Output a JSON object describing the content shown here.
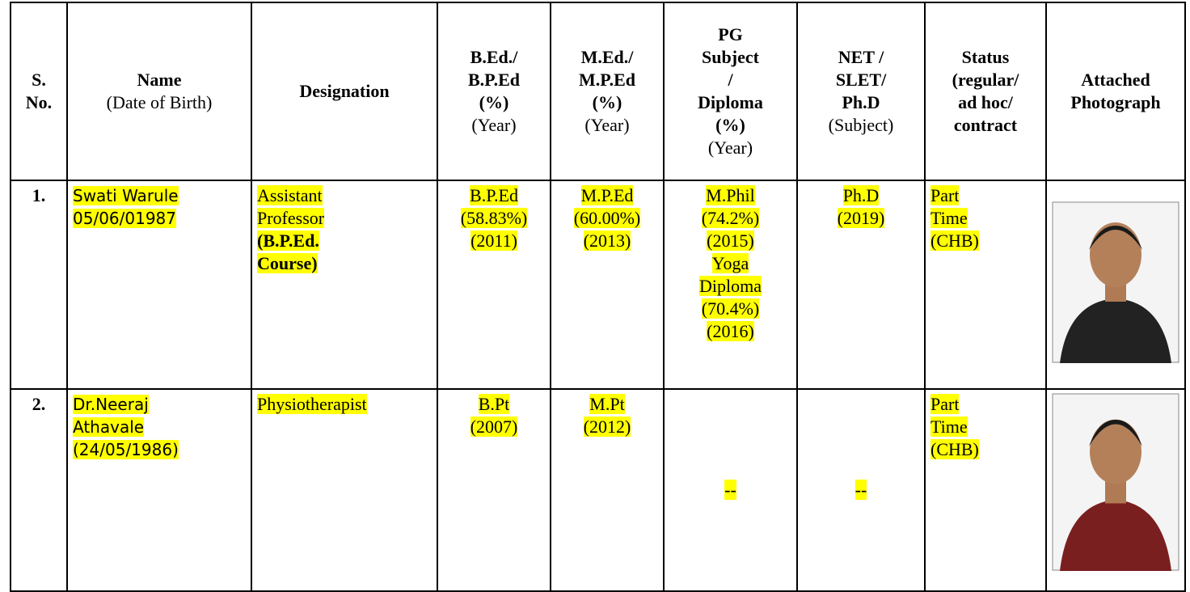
{
  "table": {
    "header": [
      [
        "S.",
        "No."
      ],
      [
        "Name",
        "(Date of Birth)"
      ],
      [
        "Designation"
      ],
      [
        "B.Ed./",
        "B.P.Ed",
        "(%)",
        "(Year)"
      ],
      [
        "M.Ed./",
        "M.P.Ed",
        "(%)",
        "(Year)"
      ],
      [
        "PG",
        "Subject",
        "/",
        "Diploma",
        "(%)",
        "(Year)"
      ],
      [
        "NET /",
        "SLET/",
        "Ph.D",
        "(Subject)"
      ],
      [
        "Status",
        "(regular/",
        "ad hoc/",
        "contract"
      ],
      [
        "Attached",
        "Photograph"
      ]
    ],
    "rows": [
      [
        [
          "1."
        ],
        [
          "Swati Warule",
          "05/06/01987"
        ],
        [
          "Assistant",
          "Professor",
          "(B.P.Ed.",
          "Course)"
        ],
        [
          "B.P.Ed",
          "(58.83%)",
          "(2011)"
        ],
        [
          "M.P.Ed",
          "(60.00%)",
          "(2013)"
        ],
        [
          "M.Phil",
          "(74.2%)",
          "(2015)",
          "Yoga",
          "Diploma",
          "(70.4%)",
          "(2016)"
        ],
        [
          "Ph.D",
          "(2019)"
        ],
        [
          "Part",
          "Time",
          "(CHB)"
        ]
      ],
      [
        [
          "2."
        ],
        [
          "Dr.Neeraj",
          "Athavale",
          "(24/05/1986)"
        ],
        [
          "Physiotherapist"
        ],
        [
          "B.Pt",
          "(2007)"
        ],
        [
          "M.Pt",
          "(2012)"
        ],
        [
          "--"
        ],
        [
          "--"
        ],
        [
          "Part",
          "Time",
          "(CHB)"
        ]
      ]
    ]
  }
}
